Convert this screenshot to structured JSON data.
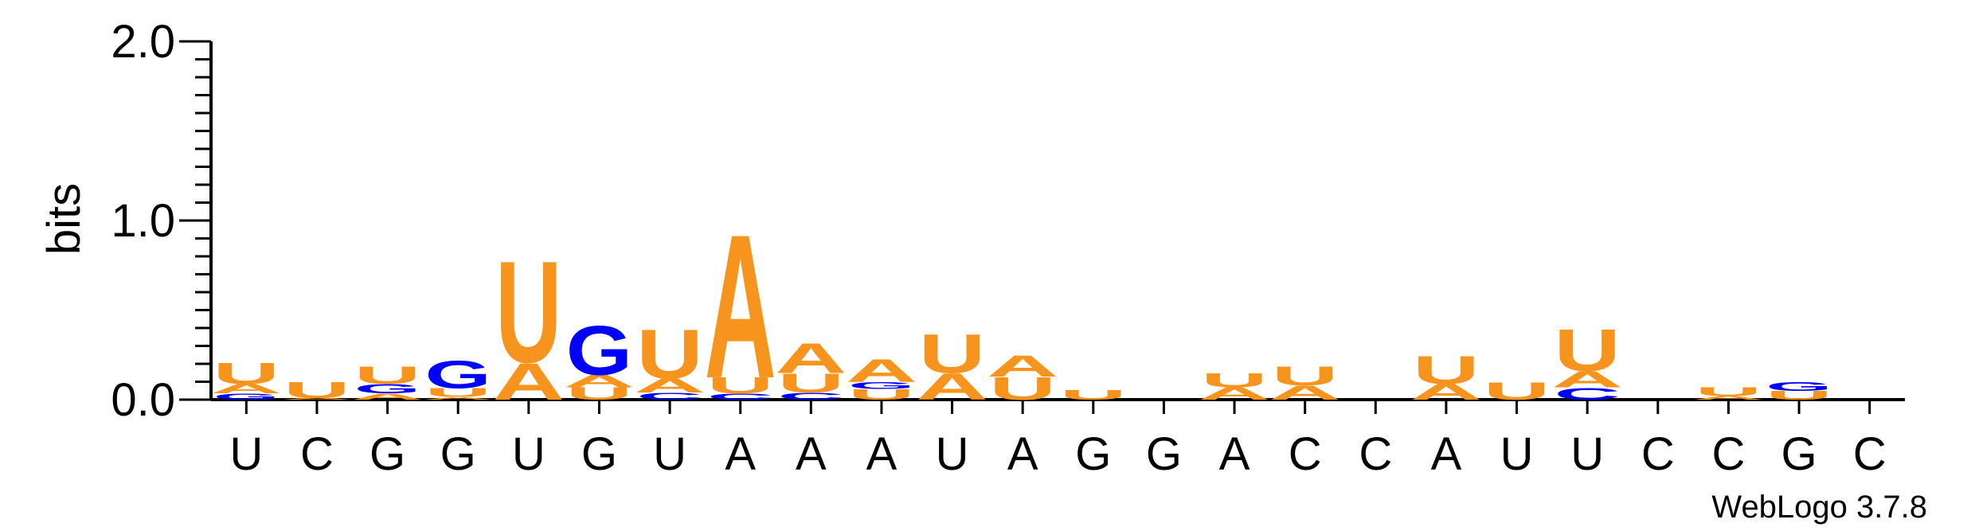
{
  "chart_data": {
    "type": "sequence-logo",
    "ylabel": "bits",
    "ylim": [
      0,
      2.0
    ],
    "yticks": [
      "0.0",
      "1.0",
      "2.0"
    ],
    "colors": {
      "A": "#f7941d",
      "U": "#f7941d",
      "G": "#0000ff",
      "C": "#0000ff"
    },
    "categories": [
      "U",
      "C",
      "G",
      "G",
      "U",
      "G",
      "U",
      "A",
      "A",
      "A",
      "U",
      "A",
      "G",
      "G",
      "A",
      "C",
      "C",
      "A",
      "U",
      "U",
      "C",
      "C",
      "G",
      "C"
    ],
    "stacks": [
      [
        {
          "l": "G",
          "h": 0.035
        },
        {
          "l": "A",
          "h": 0.055
        },
        {
          "l": "U",
          "h": 0.12
        }
      ],
      [
        {
          "l": "A",
          "h": 0.01
        },
        {
          "l": "U",
          "h": 0.09
        }
      ],
      [
        {
          "l": "A",
          "h": 0.035
        },
        {
          "l": "G",
          "h": 0.055
        },
        {
          "l": "U",
          "h": 0.1
        }
      ],
      [
        {
          "l": "A",
          "h": 0.015
        },
        {
          "l": "U",
          "h": 0.05
        },
        {
          "l": "G",
          "h": 0.16
        }
      ],
      [
        {
          "l": "A",
          "h": 0.21
        },
        {
          "l": "U",
          "h": 0.58
        }
      ],
      [
        {
          "l": "U",
          "h": 0.07
        },
        {
          "l": "A",
          "h": 0.07
        },
        {
          "l": "G",
          "h": 0.29
        }
      ],
      [
        {
          "l": "C",
          "h": 0.04
        },
        {
          "l": "A",
          "h": 0.08
        },
        {
          "l": "U",
          "h": 0.28
        }
      ],
      [
        {
          "l": "C",
          "h": 0.035
        },
        {
          "l": "U",
          "h": 0.09
        },
        {
          "l": "A",
          "h": 0.82
        }
      ],
      [
        {
          "l": "C",
          "h": 0.04
        },
        {
          "l": "U",
          "h": 0.11
        },
        {
          "l": "A",
          "h": 0.17
        }
      ],
      [
        {
          "l": "U",
          "h": 0.06
        },
        {
          "l": "G",
          "h": 0.04
        },
        {
          "l": "A",
          "h": 0.13
        }
      ],
      [
        {
          "l": "A",
          "h": 0.15
        },
        {
          "l": "U",
          "h": 0.22
        }
      ],
      [
        {
          "l": "U",
          "h": 0.13
        },
        {
          "l": "A",
          "h": 0.12
        }
      ],
      [
        {
          "l": "U",
          "h": 0.055
        }
      ],
      [],
      [
        {
          "l": "A",
          "h": 0.07
        },
        {
          "l": "U",
          "h": 0.08
        }
      ],
      [
        {
          "l": "A",
          "h": 0.08
        },
        {
          "l": "U",
          "h": 0.11
        }
      ],
      [],
      [
        {
          "l": "A",
          "h": 0.09
        },
        {
          "l": "U",
          "h": 0.16
        }
      ],
      [
        {
          "l": "U",
          "h": 0.1
        }
      ],
      [
        {
          "l": "C",
          "h": 0.07
        },
        {
          "l": "A",
          "h": 0.09
        },
        {
          "l": "U",
          "h": 0.24
        }
      ],
      [],
      [
        {
          "l": "A",
          "h": 0.02
        },
        {
          "l": "U",
          "h": 0.05
        }
      ],
      [
        {
          "l": "U",
          "h": 0.05
        },
        {
          "l": "G",
          "h": 0.05
        }
      ],
      []
    ],
    "credit": "WebLogo 3.7.8"
  }
}
